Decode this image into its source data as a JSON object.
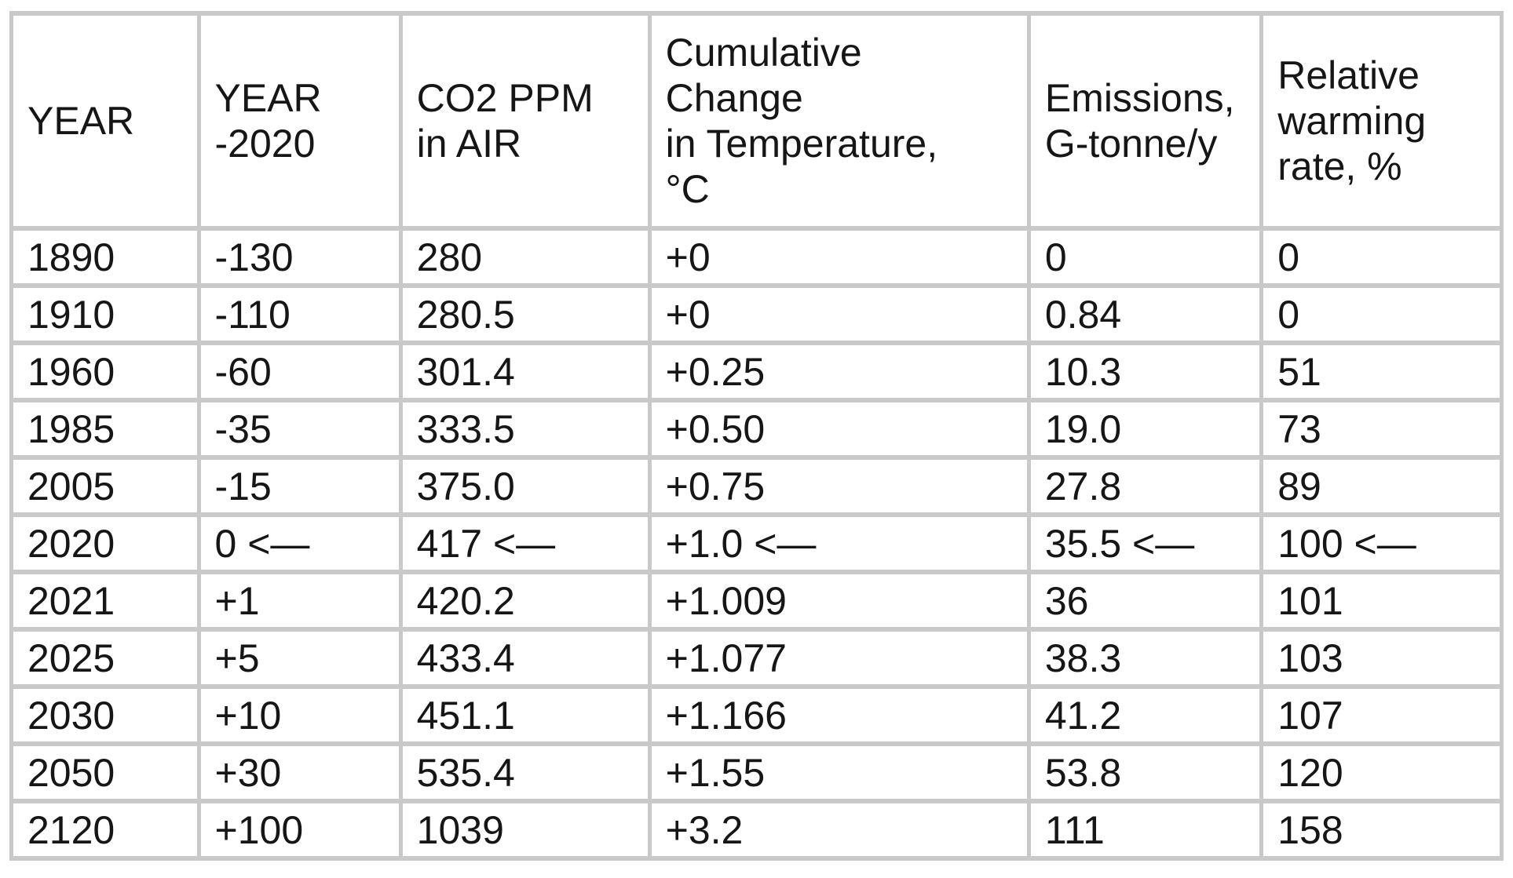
{
  "accent_colors": {
    "border_gray": "#c9c9c9",
    "cell_background": "#ffffff",
    "text_color": "#161616"
  },
  "table": {
    "headers": [
      "YEAR",
      "YEAR\n-2020",
      "CO2 PPM\nin AIR",
      "Cumulative\nChange\nin Temperature,\n°C",
      "Emissions,\nG-tonne/y",
      "Relative\nwarming\nrate, %"
    ],
    "rows": [
      [
        "1890",
        "-130",
        "280",
        "+0",
        "0",
        "0"
      ],
      [
        "1910",
        "-110",
        "280.5",
        "+0",
        "0.84",
        "0"
      ],
      [
        "1960",
        "-60",
        "301.4",
        "+0.25",
        "10.3",
        "51"
      ],
      [
        "1985",
        "-35",
        "333.5",
        "+0.50",
        "19.0",
        "73"
      ],
      [
        "2005",
        "-15",
        "375.0",
        "+0.75",
        "27.8",
        "89"
      ],
      [
        "2020",
        "0 <—",
        "417 <—",
        "+1.0 <—",
        "35.5 <—",
        "100 <—"
      ],
      [
        "2021",
        "+1",
        "420.2",
        "+1.009",
        "36",
        "101"
      ],
      [
        "2025",
        "+5",
        "433.4",
        "+1.077",
        "38.3",
        "103"
      ],
      [
        "2030",
        "+10",
        "451.1",
        "+1.166",
        "41.2",
        "107"
      ],
      [
        "2050",
        "+30",
        "535.4",
        "+1.55",
        "53.8",
        "120"
      ],
      [
        "2120",
        "+100",
        "1039",
        "+3.2",
        "111",
        "158"
      ]
    ],
    "reference_row_marker": "<—",
    "reference_row_year": "2020"
  },
  "chart_data": {
    "type": "table",
    "title": "",
    "columns": [
      "YEAR",
      "YEAR -2020",
      "CO2 PPM in AIR",
      "Cumulative Change in Temperature, °C",
      "Emissions, G-tonne/y",
      "Relative warming rate, %"
    ],
    "x": [
      1890,
      1910,
      1960,
      1985,
      2005,
      2020,
      2021,
      2025,
      2030,
      2050,
      2120
    ],
    "series": [
      {
        "name": "YEAR -2020",
        "values": [
          -130,
          -110,
          -60,
          -35,
          -15,
          0,
          1,
          5,
          10,
          30,
          100
        ]
      },
      {
        "name": "CO2 PPM in AIR",
        "values": [
          280,
          280.5,
          301.4,
          333.5,
          375.0,
          417,
          420.2,
          433.4,
          451.1,
          535.4,
          1039
        ]
      },
      {
        "name": "Cumulative Change in Temperature, °C",
        "values": [
          0,
          0,
          0.25,
          0.5,
          0.75,
          1.0,
          1.009,
          1.077,
          1.166,
          1.55,
          3.2
        ]
      },
      {
        "name": "Emissions, G-tonne/y",
        "values": [
          0,
          0.84,
          10.3,
          19.0,
          27.8,
          35.5,
          36,
          38.3,
          41.2,
          53.8,
          111
        ]
      },
      {
        "name": "Relative warming rate, %",
        "values": [
          0,
          0,
          51,
          73,
          89,
          100,
          101,
          103,
          107,
          120,
          158
        ]
      }
    ],
    "annotations": [
      {
        "row_year": 2020,
        "text": "<—",
        "meaning": "arrow marking the 2020 baseline row in every value column"
      }
    ],
    "layout": {
      "grid": "all cell borders light gray",
      "header_row": true,
      "legend": "none"
    }
  }
}
